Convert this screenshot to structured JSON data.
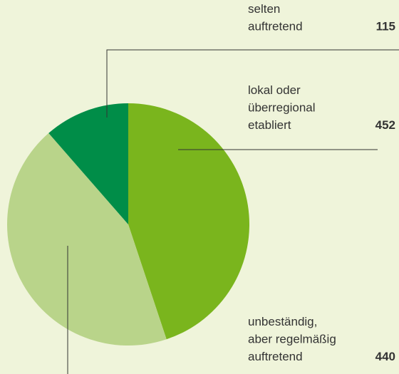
{
  "chart_data": {
    "type": "pie",
    "categories": [
      [
        "lokal oder",
        "überregional",
        "etabliert"
      ],
      [
        "unbeständig,",
        "aber regelmäßig",
        "auftretend"
      ],
      [
        "selten",
        "auftretend"
      ]
    ],
    "values": [
      452,
      440,
      115
    ],
    "colors": [
      "#7ab51d",
      "#b9d48a",
      "#008d48"
    ]
  }
}
